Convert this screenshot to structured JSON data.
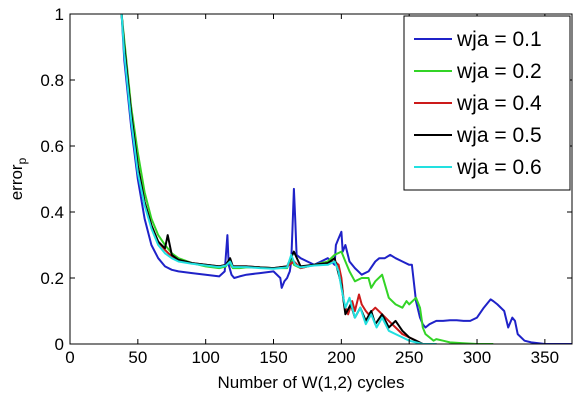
{
  "chart_data": {
    "type": "line",
    "title": "",
    "xlabel": "Number of W(1,2) cycles",
    "ylabel_main": "error",
    "ylabel_sub": "p",
    "xlim": [
      0,
      370
    ],
    "ylim": [
      0,
      1
    ],
    "xticks": [
      "0",
      "50",
      "100",
      "150",
      "200",
      "250",
      "300",
      "350"
    ],
    "yticks": [
      "0",
      "0.2",
      "0.4",
      "0.6",
      "0.8",
      "1"
    ],
    "grid": false,
    "legend_position": "top-right",
    "series": [
      {
        "name": "wja = 0.1",
        "color": "#1f22c8",
        "x": [
          38,
          40,
          45,
          50,
          55,
          60,
          65,
          70,
          75,
          80,
          90,
          100,
          110,
          114,
          116,
          117,
          119,
          121,
          125,
          130,
          140,
          150,
          155,
          156,
          158,
          160,
          161,
          162,
          163,
          164,
          165,
          166,
          167,
          170,
          175,
          180,
          185,
          190,
          195,
          196,
          198,
          200,
          201,
          203,
          206,
          210,
          215,
          220,
          225,
          228,
          232,
          236,
          240,
          245,
          250,
          252,
          255,
          258,
          260,
          262,
          265,
          270,
          275,
          280,
          285,
          290,
          295,
          300,
          305,
          310,
          312,
          315,
          320,
          323,
          326,
          328,
          330,
          335,
          340,
          350,
          360,
          370
        ],
        "y": [
          1.0,
          0.86,
          0.66,
          0.5,
          0.38,
          0.3,
          0.26,
          0.235,
          0.225,
          0.22,
          0.215,
          0.21,
          0.205,
          0.22,
          0.33,
          0.24,
          0.21,
          0.2,
          0.205,
          0.21,
          0.215,
          0.22,
          0.2,
          0.17,
          0.19,
          0.2,
          0.21,
          0.22,
          0.25,
          0.35,
          0.47,
          0.38,
          0.27,
          0.26,
          0.25,
          0.24,
          0.25,
          0.26,
          0.24,
          0.3,
          0.32,
          0.34,
          0.28,
          0.3,
          0.25,
          0.23,
          0.21,
          0.22,
          0.25,
          0.26,
          0.26,
          0.27,
          0.26,
          0.25,
          0.24,
          0.24,
          0.13,
          0.08,
          0.06,
          0.05,
          0.06,
          0.07,
          0.07,
          0.072,
          0.072,
          0.07,
          0.07,
          0.08,
          0.11,
          0.135,
          0.13,
          0.12,
          0.1,
          0.05,
          0.08,
          0.07,
          0.03,
          0.01,
          0.005,
          0.0,
          0.0,
          0.0
        ]
      },
      {
        "name": "wja = 0.2",
        "color": "#33d426",
        "x": [
          38,
          40,
          45,
          50,
          55,
          60,
          65,
          70,
          75,
          80,
          90,
          100,
          110,
          115,
          117,
          120,
          125,
          130,
          140,
          150,
          160,
          163,
          165,
          170,
          180,
          190,
          195,
          200,
          203,
          206,
          210,
          215,
          220,
          222,
          225,
          230,
          235,
          240,
          245,
          248,
          250,
          255,
          258,
          260,
          262,
          265,
          268,
          270,
          275,
          280,
          290,
          300,
          310,
          312
        ],
        "y": [
          1.0,
          0.92,
          0.72,
          0.58,
          0.46,
          0.38,
          0.33,
          0.3,
          0.275,
          0.26,
          0.245,
          0.235,
          0.23,
          0.235,
          0.25,
          0.23,
          0.23,
          0.232,
          0.232,
          0.23,
          0.23,
          0.26,
          0.24,
          0.23,
          0.24,
          0.25,
          0.27,
          0.28,
          0.25,
          0.22,
          0.19,
          0.2,
          0.2,
          0.17,
          0.19,
          0.21,
          0.14,
          0.12,
          0.11,
          0.13,
          0.12,
          0.14,
          0.11,
          0.05,
          0.03,
          0.02,
          0.01,
          0.015,
          0.01,
          0.005,
          0.002,
          0.0,
          0.0,
          0.0
        ]
      },
      {
        "name": "wja = 0.4",
        "color": "#cc1a1a",
        "x": [
          38,
          40,
          45,
          50,
          55,
          60,
          65,
          70,
          75,
          80,
          90,
          100,
          110,
          115,
          118,
          120,
          130,
          140,
          150,
          160,
          165,
          170,
          180,
          190,
          195,
          198,
          200,
          202,
          205,
          208,
          210,
          213,
          215,
          218,
          220,
          225,
          230,
          235,
          240,
          245,
          250,
          255,
          260,
          265,
          270
        ],
        "y": [
          1.0,
          0.9,
          0.7,
          0.54,
          0.43,
          0.36,
          0.31,
          0.285,
          0.265,
          0.255,
          0.245,
          0.24,
          0.235,
          0.24,
          0.25,
          0.235,
          0.235,
          0.232,
          0.23,
          0.235,
          0.25,
          0.23,
          0.24,
          0.245,
          0.25,
          0.24,
          0.2,
          0.12,
          0.09,
          0.13,
          0.1,
          0.15,
          0.12,
          0.1,
          0.09,
          0.11,
          0.09,
          0.07,
          0.05,
          0.03,
          0.02,
          0.01,
          0.0,
          0.0,
          0.0
        ]
      },
      {
        "name": "wja = 0.5",
        "color": "#000000",
        "x": [
          38,
          40,
          45,
          50,
          55,
          60,
          65,
          70,
          72,
          75,
          80,
          90,
          100,
          110,
          115,
          118,
          120,
          130,
          140,
          150,
          160,
          165,
          170,
          180,
          190,
          195,
          200,
          203,
          207,
          210,
          214,
          218,
          222,
          225,
          230,
          235,
          240,
          245,
          250,
          255,
          260,
          270
        ],
        "y": [
          1.0,
          0.9,
          0.7,
          0.54,
          0.43,
          0.36,
          0.31,
          0.29,
          0.33,
          0.27,
          0.255,
          0.245,
          0.24,
          0.235,
          0.24,
          0.26,
          0.235,
          0.235,
          0.232,
          0.23,
          0.235,
          0.28,
          0.235,
          0.24,
          0.245,
          0.26,
          0.18,
          0.09,
          0.12,
          0.08,
          0.11,
          0.07,
          0.1,
          0.06,
          0.09,
          0.05,
          0.07,
          0.04,
          0.02,
          0.01,
          0.0,
          0.0
        ]
      },
      {
        "name": "wja = 0.6",
        "color": "#22e0e0",
        "x": [
          38,
          40,
          45,
          50,
          55,
          60,
          65,
          70,
          75,
          80,
          90,
          100,
          110,
          115,
          118,
          120,
          130,
          140,
          150,
          160,
          163,
          166,
          170,
          180,
          190,
          195,
          198,
          200,
          203,
          206,
          210,
          214,
          218,
          222,
          226,
          230,
          235,
          240,
          245,
          250,
          255,
          260,
          270
        ],
        "y": [
          1.0,
          0.88,
          0.68,
          0.52,
          0.42,
          0.35,
          0.3,
          0.275,
          0.26,
          0.25,
          0.243,
          0.238,
          0.233,
          0.238,
          0.25,
          0.233,
          0.233,
          0.23,
          0.228,
          0.232,
          0.27,
          0.24,
          0.232,
          0.238,
          0.24,
          0.25,
          0.22,
          0.17,
          0.11,
          0.14,
          0.08,
          0.11,
          0.06,
          0.09,
          0.05,
          0.08,
          0.04,
          0.03,
          0.02,
          0.01,
          0.005,
          0.0,
          0.0
        ]
      }
    ]
  }
}
